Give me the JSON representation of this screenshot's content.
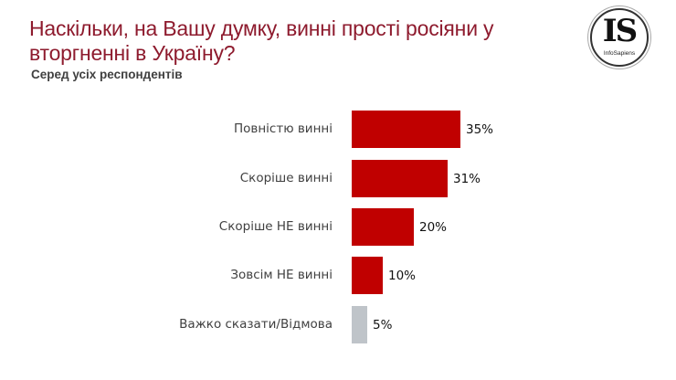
{
  "header": {
    "title": "Наскільки, на Вашу думку, винні прості росіяни у вторгненні в Україну?",
    "subtitle": "Серед усіх респондентів"
  },
  "logo": {
    "mark": "IS",
    "name": "InfoSapiens"
  },
  "colors": {
    "title": "#8E1B2E",
    "bar_primary": "#C00000",
    "bar_neutral": "#BFC4C9"
  },
  "chart_data": {
    "type": "bar",
    "orientation": "horizontal",
    "title": "Наскільки, на Вашу думку, винні прості росіяни у вторгненні в Україну?",
    "subtitle": "Серед усіх респондентів",
    "categories": [
      "Повністю винні",
      "Скоріше винні",
      "Скоріше НЕ винні",
      "Зовсім НЕ винні",
      "Важко сказати/Відмова"
    ],
    "values": [
      35,
      31,
      20,
      10,
      5
    ],
    "value_labels": [
      "35%",
      "31%",
      "20%",
      "10%",
      "5%"
    ],
    "unit": "%",
    "xlabel": "",
    "ylabel": "",
    "grid": false,
    "legend": null
  }
}
